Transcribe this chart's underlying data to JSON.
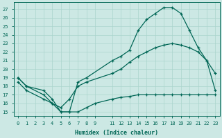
{
  "xlabel": "Humidex (Indice chaleur)",
  "bg_color": "#cce8e4",
  "grid_color": "#aad4cc",
  "line_color": "#006655",
  "xlim": [
    -0.5,
    23.5
  ],
  "ylim": [
    14.5,
    27.8
  ],
  "xticks": [
    0,
    1,
    2,
    3,
    4,
    5,
    6,
    7,
    8,
    9,
    11,
    12,
    13,
    14,
    15,
    16,
    17,
    18,
    19,
    20,
    21,
    22,
    23
  ],
  "yticks": [
    15,
    16,
    17,
    18,
    19,
    20,
    21,
    22,
    23,
    24,
    25,
    26,
    27
  ],
  "line1_x": [
    0,
    1,
    3,
    4,
    5,
    6,
    7,
    8,
    11,
    12,
    13,
    14,
    15,
    16,
    17,
    18,
    19,
    20,
    21,
    22,
    23
  ],
  "line1_y": [
    19,
    18,
    17,
    16,
    15,
    15,
    18.5,
    19,
    21,
    21.5,
    22.2,
    24.5,
    25.8,
    26.5,
    27.2,
    27.2,
    26.5,
    24.5,
    22.5,
    21,
    19.5
  ],
  "line2_x": [
    0,
    1,
    3,
    4,
    5,
    6,
    7,
    8,
    11,
    12,
    13,
    14,
    15,
    16,
    17,
    18,
    19,
    20,
    21,
    22,
    23
  ],
  "line2_y": [
    18.5,
    17.5,
    16.5,
    16,
    15.5,
    16.5,
    18,
    18.5,
    19.5,
    20,
    20.8,
    21.5,
    22,
    22.5,
    22.8,
    23,
    22.8,
    22.5,
    22,
    21,
    17.5
  ],
  "line3_x": [
    0,
    1,
    3,
    4,
    5,
    6,
    7,
    8,
    9,
    11,
    12,
    13,
    14,
    15,
    16,
    17,
    18,
    19,
    20,
    21,
    22,
    23
  ],
  "line3_y": [
    19,
    18,
    17.5,
    16.5,
    15,
    15,
    15,
    15.5,
    16,
    16.5,
    16.7,
    16.8,
    17,
    17,
    17,
    17,
    17,
    17,
    17,
    17,
    17,
    17
  ]
}
